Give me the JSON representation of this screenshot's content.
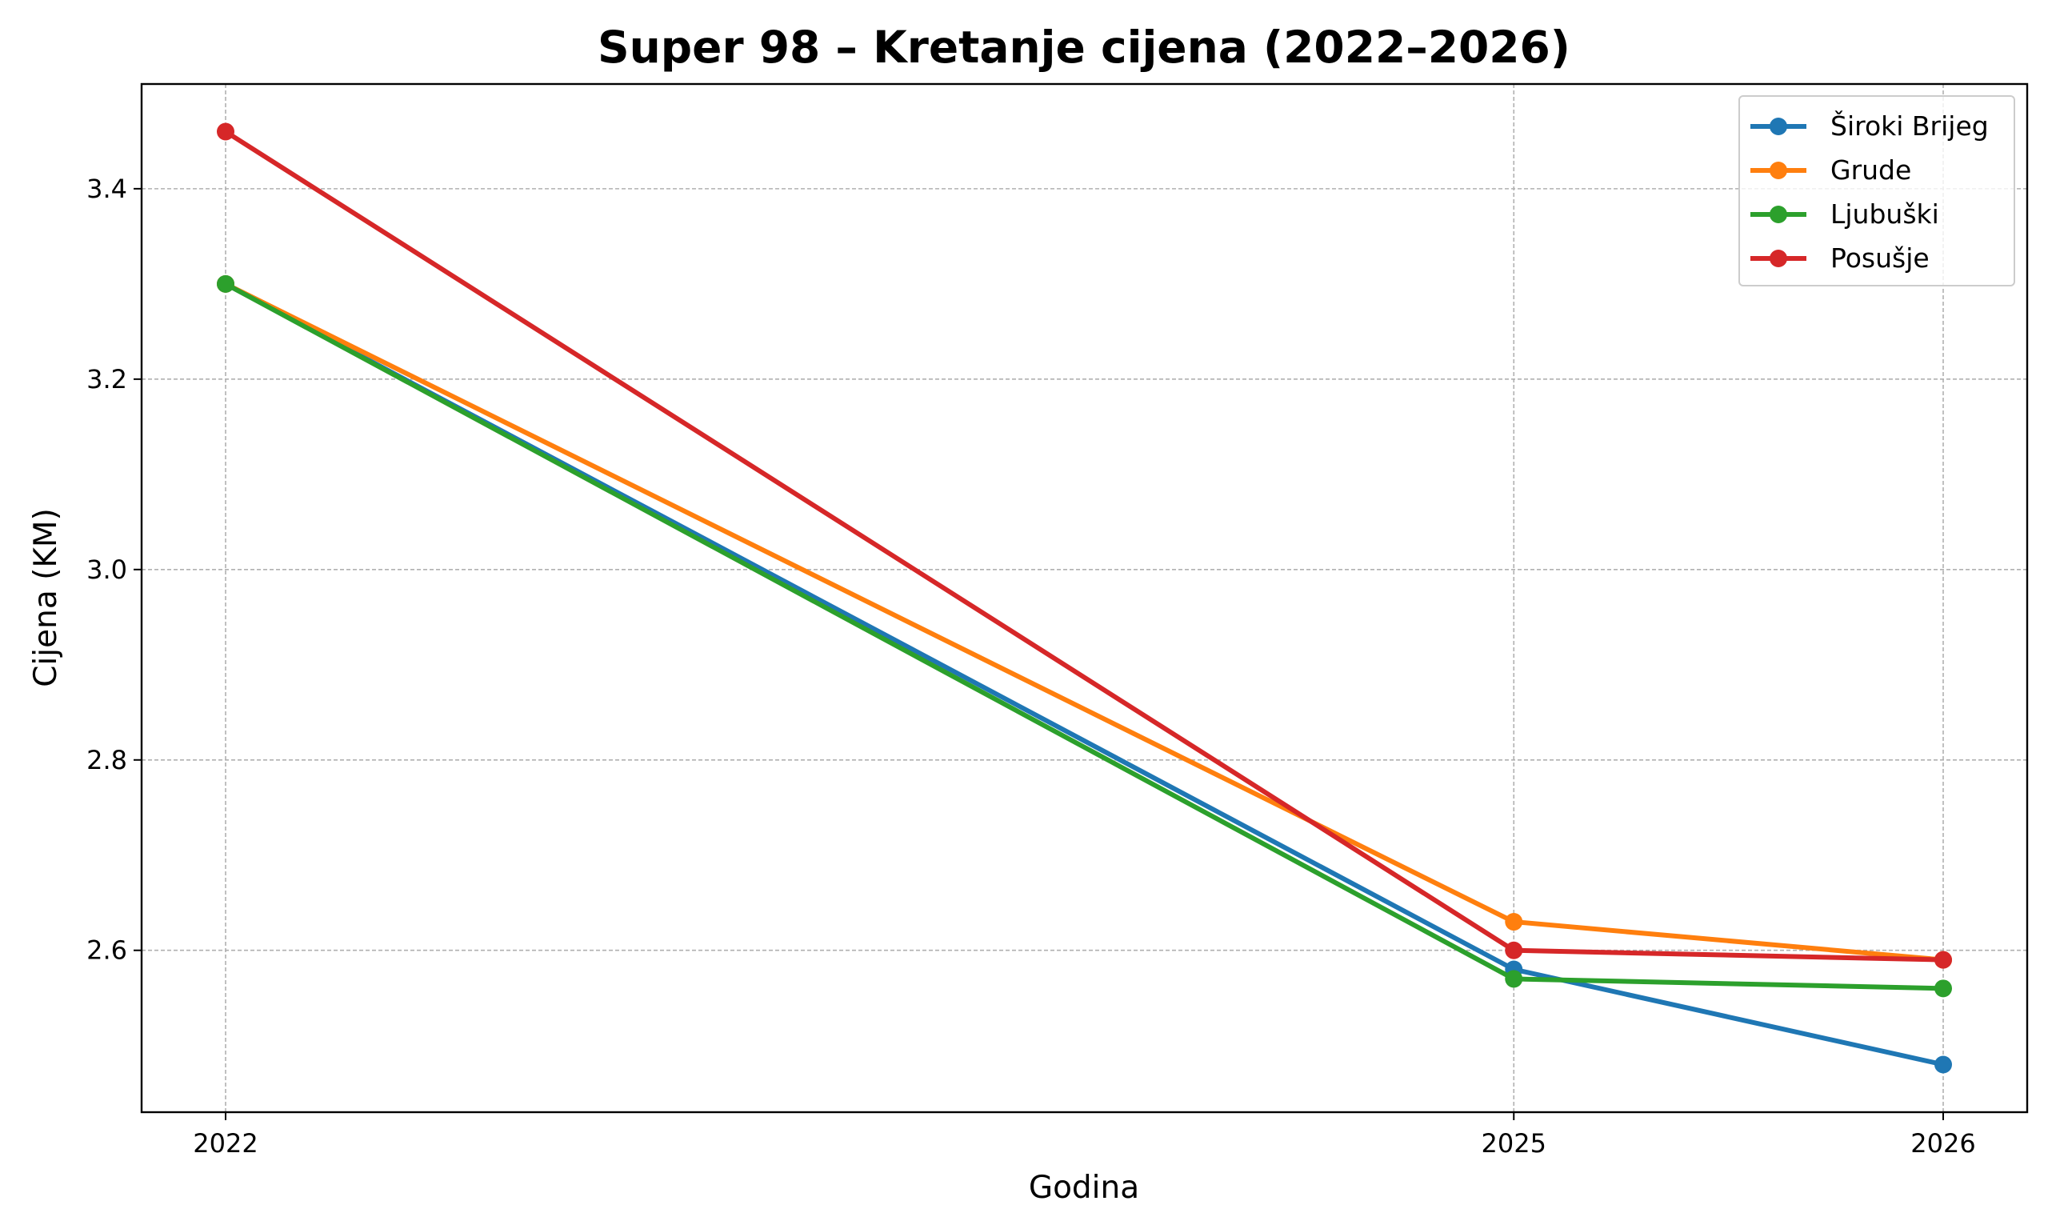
{
  "chart_data": {
    "type": "line",
    "title": "Super 98 – Kretanje cijena (2022–2026)",
    "xlabel": "Godina",
    "ylabel": "Cijena (KM)",
    "x": [
      "2022",
      "2025",
      "2026"
    ],
    "ylim": [
      2.43,
      3.51
    ],
    "yticks": [
      "2.6",
      "2.8",
      "3.0",
      "3.2",
      "3.4"
    ],
    "grid": true,
    "legend_position": "top-right",
    "series": [
      {
        "name": "Široki Brijeg",
        "color": "#1f77b4",
        "values": [
          3.3,
          2.58,
          2.48
        ]
      },
      {
        "name": "Grude",
        "color": "#ff7f0e",
        "values": [
          3.3,
          2.63,
          2.59
        ]
      },
      {
        "name": "Ljubuški",
        "color": "#2ca02c",
        "values": [
          3.3,
          2.57,
          2.56
        ]
      },
      {
        "name": "Posušje",
        "color": "#d62728",
        "values": [
          3.46,
          2.6,
          2.59
        ]
      }
    ]
  }
}
